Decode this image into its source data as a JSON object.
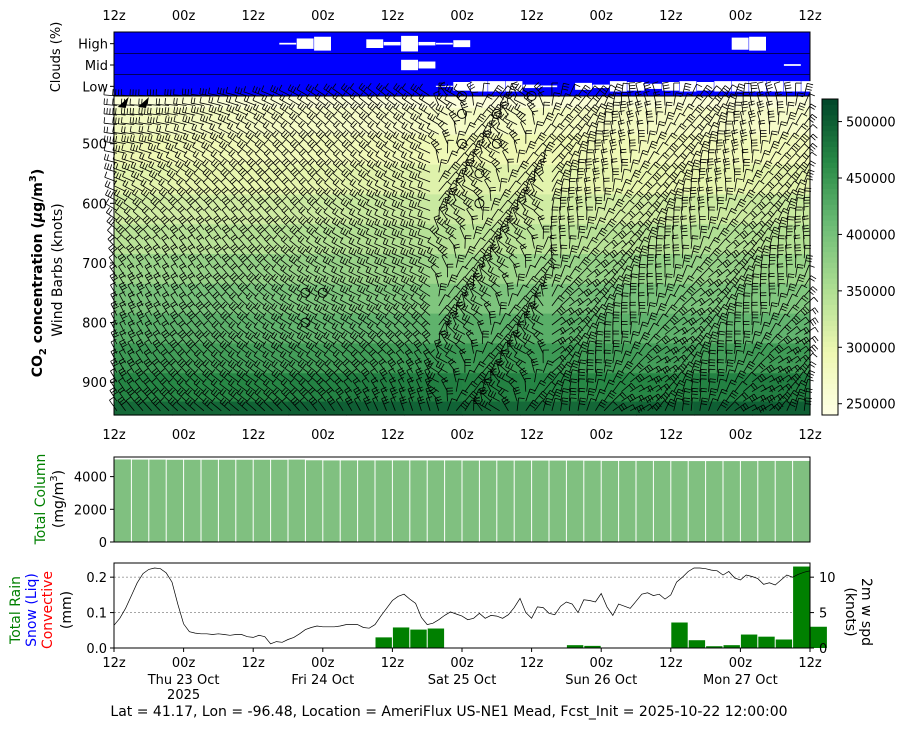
{
  "footer": "Lat = 41.17, Lon = -96.48, Location = AmeriFlux US-NE1 Mead, Fcst_Init = 2025-10-22 12:00:00",
  "colors": {
    "cloud_bg": "#0000ff",
    "cloud_box": "#ffffff",
    "total_column_bar": "#80c080",
    "precip_bar": "#008000",
    "rain_label": "#008000",
    "snow_label": "#0000ff",
    "convective_label": "#ff0000",
    "total_column_label": "#008000"
  },
  "time_ticks": [
    "12z",
    "00z",
    "12z",
    "00z",
    "12z",
    "00z",
    "12z",
    "00z",
    "12z",
    "00z",
    "12z"
  ],
  "date_ticks": [
    {
      "label": "Thu 23 Oct",
      "sub": "2025"
    },
    {
      "label": "Fri 24 Oct",
      "sub": ""
    },
    {
      "label": "Sat 25 Oct",
      "sub": ""
    },
    {
      "label": "Sun 26 Oct",
      "sub": ""
    },
    {
      "label": "Mon 27 Oct",
      "sub": ""
    }
  ],
  "chart_data": [
    {
      "type": "table",
      "panel": "clouds",
      "ylabel": "Clouds (%)",
      "rows": [
        "High",
        "Mid",
        "Low"
      ],
      "x_range_hours": [
        0,
        120
      ],
      "high_boxes": [
        {
          "t": 30,
          "v": 0.1
        },
        {
          "t": 33,
          "v": 0.6
        },
        {
          "t": 36,
          "v": 0.8
        },
        {
          "t": 45,
          "v": 0.5
        },
        {
          "t": 48,
          "v": 0.2
        },
        {
          "t": 51,
          "v": 0.9
        },
        {
          "t": 54,
          "v": 0.2
        },
        {
          "t": 57,
          "v": 0.1
        },
        {
          "t": 60,
          "v": 0.4
        },
        {
          "t": 108,
          "v": 0.7
        },
        {
          "t": 111,
          "v": 0.8
        }
      ],
      "mid_boxes": [
        {
          "t": 51,
          "v": 0.6
        },
        {
          "t": 54,
          "v": 0.4
        },
        {
          "t": 117,
          "v": 0.1
        }
      ],
      "low_boxes": [
        {
          "t": 57,
          "v": 0.05
        },
        {
          "t": 60,
          "v": 0.5
        },
        {
          "t": 63,
          "v": 0.6
        },
        {
          "t": 66,
          "v": 0.6
        },
        {
          "t": 69,
          "v": 0.6
        },
        {
          "t": 72,
          "v": 0.2
        },
        {
          "t": 75,
          "v": 0.1
        },
        {
          "t": 81,
          "v": 0.4
        },
        {
          "t": 84,
          "v": 0.2
        },
        {
          "t": 87,
          "v": 0.6
        },
        {
          "t": 90,
          "v": 0.5
        },
        {
          "t": 93,
          "v": 0.3
        },
        {
          "t": 96,
          "v": 0.5
        },
        {
          "t": 99,
          "v": 0.6
        },
        {
          "t": 102,
          "v": 0.5
        },
        {
          "t": 105,
          "v": 0.6
        },
        {
          "t": 108,
          "v": 0.6
        },
        {
          "t": 111,
          "v": 0.6
        },
        {
          "t": 114,
          "v": 0.6
        },
        {
          "t": 117,
          "v": 0.6
        },
        {
          "t": 120,
          "v": 0.6
        }
      ]
    },
    {
      "type": "heatmap",
      "panel": "co2",
      "ylabel_line1": "CO",
      "ylabel_sub": "2",
      "ylabel_rest": " concentration (",
      "ylabel_mu": "μ",
      "ylabel_unit": "g/m",
      "ylabel_sup": "3",
      "ylabel_close": ")",
      "ylabel_line2": "Wind Barbs (knots)",
      "y_ticks": [
        500,
        600,
        700,
        800,
        900
      ],
      "ylim": [
        955,
        420
      ],
      "x_range_hours": [
        0,
        120
      ],
      "levels_hpa": [
        420,
        460,
        510,
        560,
        610,
        660,
        710,
        760,
        810,
        860,
        910,
        955
      ],
      "conc_by_level": [
        255000,
        275000,
        290000,
        305000,
        325000,
        345000,
        370000,
        395000,
        420000,
        445000,
        470000,
        495000
      ],
      "colorbar_ticks": [
        250000,
        300000,
        350000,
        400000,
        450000,
        500000
      ],
      "colorbar_range": [
        240000,
        520000
      ],
      "calm_circles": [
        {
          "t": 60,
          "p": 420
        },
        {
          "t": 72,
          "p": 420
        },
        {
          "t": 60,
          "p": 450
        },
        {
          "t": 66,
          "p": 450
        },
        {
          "t": 60,
          "p": 500
        },
        {
          "t": 66,
          "p": 500
        },
        {
          "t": 63,
          "p": 550
        },
        {
          "t": 63,
          "p": 600
        },
        {
          "t": 33,
          "p": 750
        },
        {
          "t": 36,
          "p": 750
        },
        {
          "t": 33,
          "p": 800
        }
      ],
      "flags": [
        {
          "t": 1.5,
          "p": 430
        },
        {
          "t": 5,
          "p": 430
        }
      ]
    },
    {
      "type": "bar",
      "panel": "total_column",
      "ylabel": "Total Column",
      "ylabel2": "(mg/m",
      "ylabel2_sup": "3",
      "ylabel2_close": ")",
      "y_ticks": [
        0,
        2000,
        4000
      ],
      "ylim": [
        0,
        5200
      ],
      "x_range_hours": [
        0,
        120
      ],
      "bar_width_hours": 3,
      "values": [
        5050,
        5040,
        5040,
        5030,
        5030,
        5030,
        5030,
        5030,
        5030,
        5030,
        5040,
        5000,
        4990,
        4990,
        4990,
        4990,
        4990,
        4990,
        4990,
        4990,
        4980,
        4980,
        4980,
        4980,
        4980,
        4980,
        4980,
        4970,
        4960,
        4960,
        4960,
        4960,
        4950,
        4950,
        4950,
        4950,
        4950,
        4960,
        4960,
        4960
      ]
    },
    {
      "type": "bar",
      "panel": "precip",
      "ylabel_rain": "Total Rain",
      "ylabel_snow": "Snow (Liq)",
      "ylabel_conv": "Convective",
      "ylabel_unit": "(mm)",
      "y_ticks": [
        "0.0",
        "0.1",
        "0.2"
      ],
      "ylim": [
        0,
        0.24
      ],
      "x_range_hours": [
        0,
        120
      ],
      "bar_width_hours": 3,
      "rain": [
        0,
        0,
        0,
        0,
        0,
        0,
        0,
        0,
        0,
        0,
        0,
        0,
        0,
        0,
        0,
        0,
        0,
        0,
        0,
        0,
        0.03,
        0.058,
        0.052,
        0.055,
        0,
        0,
        0,
        0,
        0,
        0,
        0,
        0.008,
        0.006,
        0,
        0,
        0,
        0,
        0.072,
        0.022,
        0.005,
        0.008,
        0.038,
        0.032,
        0.024,
        0.23,
        0.06
      ],
      "y2label": "2m w spd",
      "y2label2": "(knots)",
      "y2_ticks": [
        0,
        5,
        10
      ],
      "y2lim": [
        0,
        12
      ],
      "wind_t": [
        0,
        1,
        2,
        3,
        4,
        5,
        6,
        7,
        8,
        9,
        10,
        11,
        12,
        13,
        14,
        15,
        16,
        17,
        18,
        19,
        20,
        21,
        22,
        23,
        24,
        25,
        26,
        27,
        28,
        29,
        30,
        31,
        32,
        33,
        34,
        35,
        36,
        37,
        38,
        39,
        40,
        41,
        42,
        43,
        44,
        45,
        46,
        47,
        48,
        49,
        50,
        51,
        52,
        53,
        54,
        55,
        56,
        57,
        58,
        59,
        60,
        61,
        62,
        63,
        64,
        65,
        66,
        67,
        68,
        69,
        70,
        71,
        72,
        73,
        74,
        75,
        76,
        77,
        78,
        79,
        80,
        81,
        82,
        83,
        84,
        85,
        86,
        87,
        88,
        89,
        90,
        91,
        92,
        93,
        94,
        95,
        96,
        97,
        98,
        99,
        100,
        101,
        102,
        103,
        104,
        105,
        106,
        107,
        108,
        109,
        110,
        111,
        112,
        113,
        114,
        115,
        116,
        117,
        118,
        119,
        120
      ],
      "wind_spd": [
        3.2,
        4.2,
        5.6,
        7.4,
        9.2,
        10.5,
        11.1,
        11.3,
        11.2,
        10.6,
        9.3,
        6.2,
        3.4,
        2.3,
        2.1,
        2.0,
        2.0,
        1.9,
        2.0,
        1.9,
        1.8,
        1.9,
        1.9,
        1.6,
        1.5,
        1.8,
        1.6,
        0.6,
        0.9,
        0.8,
        1.2,
        1.5,
        2.0,
        2.6,
        2.9,
        3.1,
        3.0,
        3.0,
        3.0,
        3.1,
        3.3,
        3.3,
        3.3,
        2.9,
        2.8,
        3.3,
        4.5,
        5.6,
        6.7,
        7.3,
        7.6,
        6.9,
        6.3,
        4.3,
        3.3,
        3.5,
        4.0,
        4.6,
        5.1,
        4.8,
        4.5,
        4.0,
        4.2,
        4.9,
        4.2,
        4.6,
        4.5,
        4.2,
        4.7,
        5.7,
        7.0,
        5.0,
        4.2,
        5.8,
        5.7,
        4.9,
        4.7,
        5.9,
        6.5,
        6.2,
        5.0,
        6.8,
        6.7,
        6.5,
        7.7,
        5.8,
        4.6,
        6.2,
        5.9,
        5.6,
        6.6,
        7.6,
        7.8,
        7.4,
        7.6,
        6.9,
        7.5,
        9.3,
        10.0,
        10.8,
        11.3,
        11.3,
        11.2,
        11.0,
        10.9,
        10.3,
        10.8,
        9.9,
        9.6,
        10.3,
        10.1,
        9.8,
        9.0,
        9.2,
        8.9,
        9.6,
        10.3,
        10.0,
        10.4,
        10.7,
        10.9
      ]
    }
  ]
}
